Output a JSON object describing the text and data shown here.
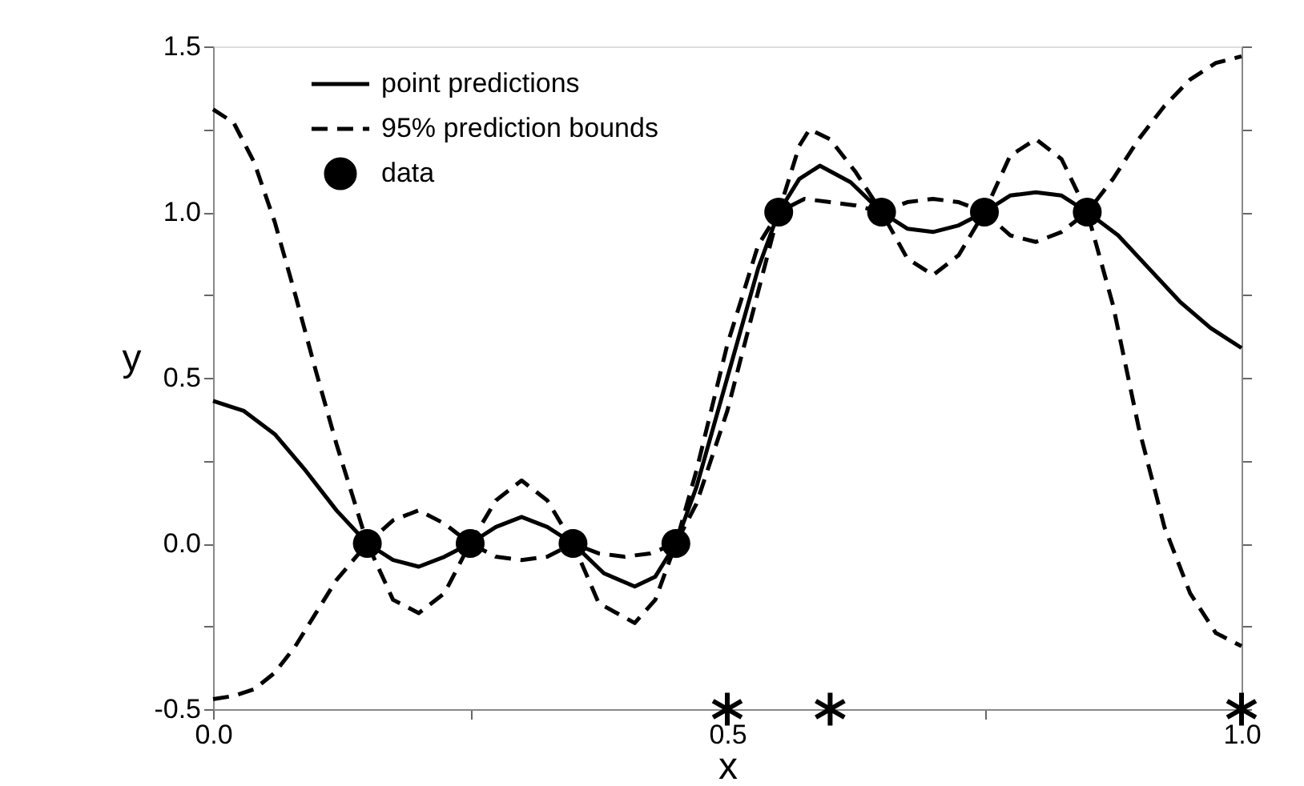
{
  "chart_data": {
    "type": "line",
    "xlabel": "x",
    "ylabel": "y",
    "xlim": [
      0,
      1
    ],
    "ylim": [
      -0.5,
      1.5
    ],
    "xticks": [
      {
        "value": 0,
        "label": "0.0"
      },
      {
        "value": 0.25,
        "label": null
      },
      {
        "value": 0.5,
        "label": "0.5"
      },
      {
        "value": 0.75,
        "label": null
      },
      {
        "value": 1,
        "label": "1.0"
      }
    ],
    "yticks": [
      {
        "value": -0.5,
        "label": "-0.5"
      },
      {
        "value": -0.25,
        "label": null
      },
      {
        "value": 0,
        "label": "0.0"
      },
      {
        "value": 0.25,
        "label": null
      },
      {
        "value": 0.5,
        "label": "0.5"
      },
      {
        "value": 0.75,
        "label": null
      },
      {
        "value": 1,
        "label": "1.0"
      },
      {
        "value": 1.25,
        "label": null
      },
      {
        "value": 1.5,
        "label": "1.5"
      }
    ],
    "legend": "top left",
    "grid": false,
    "series": [
      {
        "name": "point predictions",
        "color": "#000000",
        "line_style": "solid",
        "marker": "none",
        "x": [
          0,
          0.03,
          0.06,
          0.09,
          0.12,
          0.15,
          0.175,
          0.2,
          0.225,
          0.25,
          0.275,
          0.3,
          0.325,
          0.35,
          0.38,
          0.41,
          0.43,
          0.45,
          0.47,
          0.5,
          0.53,
          0.55,
          0.57,
          0.59,
          0.62,
          0.65,
          0.675,
          0.7,
          0.725,
          0.75,
          0.775,
          0.8,
          0.825,
          0.85,
          0.88,
          0.91,
          0.94,
          0.97,
          1.0
        ],
        "values": [
          0.43,
          0.4,
          0.33,
          0.22,
          0.1,
          0,
          -0.05,
          -0.07,
          -0.04,
          0,
          0.05,
          0.08,
          0.05,
          0,
          -0.09,
          -0.13,
          -0.1,
          0,
          0.17,
          0.5,
          0.83,
          1.0,
          1.1,
          1.14,
          1.09,
          1.0,
          0.95,
          0.94,
          0.96,
          1.0,
          1.05,
          1.06,
          1.05,
          1.0,
          0.93,
          0.83,
          0.73,
          0.65,
          0.59
        ]
      },
      {
        "name": "95% prediction bounds",
        "color": "#000000",
        "line_style": "dashed",
        "marker": "none",
        "x": [
          0,
          0.02,
          0.04,
          0.06,
          0.08,
          0.1,
          0.12,
          0.15,
          0.175,
          0.2,
          0.225,
          0.25,
          0.275,
          0.3,
          0.325,
          0.35,
          0.375,
          0.4,
          0.425,
          0.45,
          0.47,
          0.5,
          0.53,
          0.55,
          0.57,
          0.58,
          0.6,
          0.625,
          0.65,
          0.675,
          0.7,
          0.725,
          0.75,
          0.775,
          0.8,
          0.825,
          0.85,
          0.875,
          0.9,
          0.925,
          0.95,
          0.975,
          1.0
        ],
        "values": [
          1.31,
          1.27,
          1.15,
          0.97,
          0.75,
          0.52,
          0.3,
          0,
          0.07,
          0.1,
          0.06,
          0,
          0.13,
          0.19,
          0.13,
          0,
          -0.03,
          -0.04,
          -0.03,
          0,
          0.22,
          0.6,
          0.9,
          1.0,
          1.2,
          1.25,
          1.22,
          1.12,
          1.0,
          1.03,
          1.04,
          1.03,
          1.0,
          1.17,
          1.22,
          1.16,
          1.0,
          1.1,
          1.22,
          1.32,
          1.4,
          1.45,
          1.47
        ]
      },
      {
        "color": "#000000",
        "line_style": "dashed",
        "marker": "none",
        "x": [
          0,
          0.02,
          0.04,
          0.06,
          0.08,
          0.1,
          0.12,
          0.15,
          0.175,
          0.2,
          0.225,
          0.25,
          0.275,
          0.3,
          0.325,
          0.35,
          0.375,
          0.41,
          0.43,
          0.45,
          0.47,
          0.5,
          0.53,
          0.55,
          0.575,
          0.6,
          0.625,
          0.65,
          0.675,
          0.7,
          0.725,
          0.75,
          0.775,
          0.8,
          0.825,
          0.85,
          0.875,
          0.9,
          0.925,
          0.95,
          0.975,
          1.0
        ],
        "values": [
          -0.47,
          -0.46,
          -0.44,
          -0.39,
          -0.31,
          -0.21,
          -0.11,
          0,
          -0.17,
          -0.21,
          -0.15,
          0,
          -0.04,
          -0.05,
          -0.04,
          0,
          -0.18,
          -0.24,
          -0.17,
          0,
          0.12,
          0.4,
          0.76,
          1.0,
          1.04,
          1.03,
          1.02,
          1.0,
          0.86,
          0.81,
          0.87,
          1.0,
          0.93,
          0.91,
          0.94,
          1.0,
          0.72,
          0.35,
          0.05,
          -0.15,
          -0.27,
          -0.31
        ]
      },
      {
        "name": "data",
        "type": "scatter",
        "color": "#000000",
        "marker": "circle",
        "x": [
          0.15,
          0.25,
          0.35,
          0.45,
          0.55,
          0.65,
          0.75,
          0.85
        ],
        "values": [
          0,
          0,
          0,
          0,
          1,
          1,
          1,
          1
        ]
      },
      {
        "type": "scatter",
        "color": "#000000",
        "marker": "cross",
        "x": [
          0.5,
          0.6,
          1.0
        ],
        "values": [
          -0.5,
          -0.5,
          -0.5
        ]
      }
    ]
  }
}
